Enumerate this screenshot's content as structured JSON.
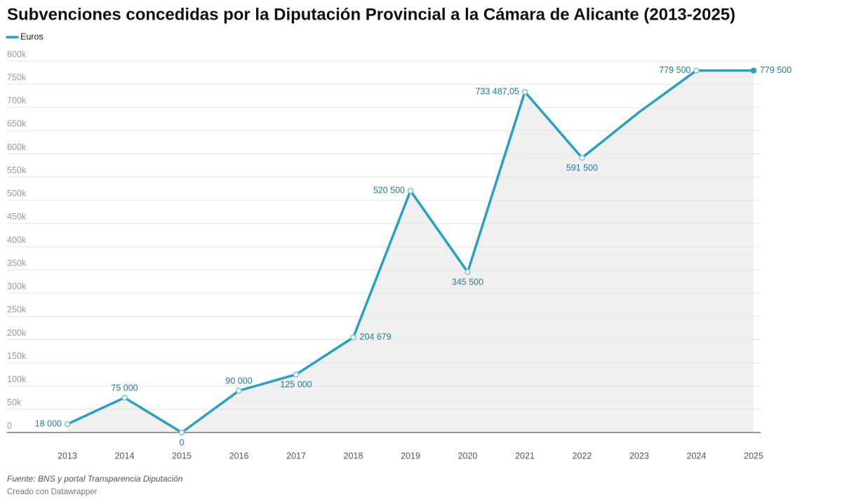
{
  "chart_data": {
    "type": "line",
    "title": "Subvenciones concedidas por la Diputación Provincial a la Cámara de Alicante (2013-2025)",
    "categories": [
      "2013",
      "2014",
      "2015",
      "2016",
      "2017",
      "2018",
      "2019",
      "2020",
      "2021",
      "2022",
      "2023",
      "2024",
      "2025"
    ],
    "series": [
      {
        "name": "Euros",
        "color": "#2a9fc3",
        "values": [
          18000,
          75000,
          0,
          90000,
          125000,
          204679,
          520500,
          345500,
          733487.05,
          591500,
          690000,
          779500,
          779500
        ],
        "value_labels": [
          "18 000",
          "75 000",
          "0",
          "90 000",
          "125 000",
          "204 679",
          "520 500",
          "345 500",
          "733 487,05",
          "591 500",
          null,
          "779 500",
          "779 500"
        ]
      }
    ],
    "ylim": [
      0,
      800000
    ],
    "yticks": [
      0,
      {
        "value": 50000,
        "label": "50k"
      },
      {
        "value": 100000,
        "label": "100k"
      },
      {
        "value": 150000,
        "label": "150k"
      },
      {
        "value": 200000,
        "label": "200k"
      },
      {
        "value": 250000,
        "label": "250k"
      },
      {
        "value": 300000,
        "label": "300k"
      },
      {
        "value": 350000,
        "label": "350k"
      },
      {
        "value": 400000,
        "label": "400k"
      },
      {
        "value": 450000,
        "label": "450k"
      },
      {
        "value": 500000,
        "label": "500k"
      },
      {
        "value": 550000,
        "label": "550k"
      },
      {
        "value": 600000,
        "label": "600k"
      },
      {
        "value": 650000,
        "label": "650k"
      },
      {
        "value": 700000,
        "label": "700k"
      },
      {
        "value": 750000,
        "label": "750k"
      },
      {
        "value": 800000,
        "label": "800k"
      }
    ],
    "grid": true,
    "area_fill": "#f0f0f0",
    "source": "Fuente: BNS y portal Transparencia Diputación",
    "credit": "Creado con Datawrapper"
  }
}
